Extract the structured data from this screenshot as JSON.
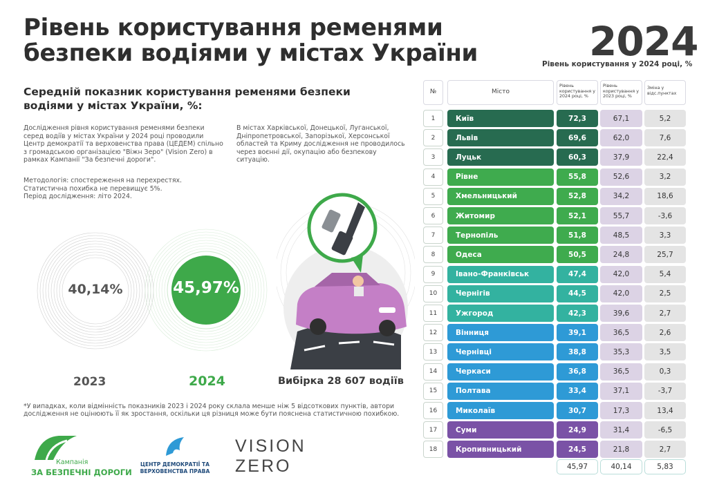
{
  "header": {
    "title_line1": "Рівень користування ременями",
    "title_line2": "безпеки водіями у містах України",
    "year": "2024",
    "year_caption": "Рівень користування у 2024 році, %"
  },
  "intro": {
    "subtitle": "Середній показник користування ременями безпеки водіями у містах України, %:",
    "para_left": "Дослідження рівня користування ременями безпеки серед водіїв  у містах України у 2024 році проводили Центр демократії та верховенства права (ЦЕДЕМ) спільно з громадською організацією \"Віжн Зеро\" (Vision Zero) в рамках Кампанії \"За безпечні дороги\".",
    "para_right": "В містах Харківської, Донецької, Луганської, Дніпропетровської, Запорізької, Херсонської областей та Криму дослідження не проводилось через воєнні дії, окупацію або безпекову ситуацію.",
    "methodology": "Методологія: спостереження на перехрестях.",
    "error": "Статистична похибка не перевищує 5%.",
    "period": "Період дослідження: літо 2024."
  },
  "averages": {
    "value_2023": "40,14%",
    "value_2024": "45,97%",
    "label_2023": "2023",
    "label_2024": "2024",
    "sample": "Вибірка 28 607 водіїв"
  },
  "footnote": "*У випадках, коли відмінність показників 2023 і 2024 року склала менше ніж 5 відсоткових пунктів, автори дослідження не оцінюють її як зростання, оскільки ця різниця може бути пояснена статистичною похибкою.",
  "logos": {
    "campaign_small": "Кампанія",
    "campaign_big": "ЗА БЕЗПЕЧНІ ДОРОГИ",
    "cedem_line1": "ЦЕНТР ДЕМОКРАТІЇ ТА",
    "cedem_line2": "ВЕРХОВЕНСТВА ПРАВА",
    "vz_line1": "VISION",
    "vz_line2": "ZERO"
  },
  "table": {
    "headers": {
      "num": "№",
      "city": "Місто",
      "rate_2024": "Рівень користування у 2024 році, %",
      "rate_2023": "Рівень користування у 2023 році, %",
      "change": "Зміна у відс.пунктах"
    },
    "totals": {
      "rate_2024": "45,97",
      "rate_2023": "40,14",
      "change": "5,83"
    }
  },
  "chart_data": {
    "type": "table",
    "title": "Рівень користування ременями безпеки водіями у містах України",
    "columns": [
      "№",
      "Місто",
      "Рівень користування у 2024 році, %",
      "Рівень користування у 2023 році, %",
      "Зміна у відс.пунктах"
    ],
    "rows": [
      {
        "n": "1",
        "city": "Київ",
        "v2024": "72,3",
        "v2023": "67,1",
        "change": "5,2",
        "color": "#276b50"
      },
      {
        "n": "2",
        "city": "Львів",
        "v2024": "69,6",
        "v2023": "62,0",
        "change": "7,6",
        "color": "#276b50"
      },
      {
        "n": "3",
        "city": "Луцьк",
        "v2024": "60,3",
        "v2023": "37,9",
        "change": "22,4",
        "color": "#276b50"
      },
      {
        "n": "4",
        "city": "Рівне",
        "v2024": "55,8",
        "v2023": "52,6",
        "change": "3,2",
        "color": "#3fab4e"
      },
      {
        "n": "5",
        "city": "Хмельницький",
        "v2024": "52,8",
        "v2023": "34,2",
        "change": "18,6",
        "color": "#3fab4e"
      },
      {
        "n": "6",
        "city": "Житомир",
        "v2024": "52,1",
        "v2023": "55,7",
        "change": "-3,6",
        "color": "#3fab4e"
      },
      {
        "n": "7",
        "city": "Тернопіль",
        "v2024": "51,8",
        "v2023": "48,5",
        "change": "3,3",
        "color": "#3fab4e"
      },
      {
        "n": "8",
        "city": "Одеса",
        "v2024": "50,5",
        "v2023": "24,8",
        "change": "25,7",
        "color": "#3fab4e"
      },
      {
        "n": "9",
        "city": "Івано-Франківськ",
        "v2024": "47,4",
        "v2023": "42,0",
        "change": "5,4",
        "color": "#33b2a0"
      },
      {
        "n": "10",
        "city": "Чернігів",
        "v2024": "44,5",
        "v2023": "42,0",
        "change": "2,5",
        "color": "#33b2a0"
      },
      {
        "n": "11",
        "city": "Ужгород",
        "v2024": "42,3",
        "v2023": "39,6",
        "change": "2,7",
        "color": "#33b2a0"
      },
      {
        "n": "12",
        "city": "Вінниця",
        "v2024": "39,1",
        "v2023": "36,5",
        "change": "2,6",
        "color": "#2e9ad6"
      },
      {
        "n": "13",
        "city": "Чернівці",
        "v2024": "38,8",
        "v2023": "35,3",
        "change": "3,5",
        "color": "#2e9ad6"
      },
      {
        "n": "14",
        "city": "Черкаси",
        "v2024": "36,8",
        "v2023": "36,5",
        "change": "0,3",
        "color": "#2e9ad6"
      },
      {
        "n": "15",
        "city": "Полтава",
        "v2024": "33,4",
        "v2023": "37,1",
        "change": "-3,7",
        "color": "#2e9ad6"
      },
      {
        "n": "16",
        "city": "Миколаїв",
        "v2024": "30,7",
        "v2023": "17,3",
        "change": "13,4",
        "color": "#2e9ad6"
      },
      {
        "n": "17",
        "city": "Суми",
        "v2024": "24,9",
        "v2023": "31,4",
        "change": "-6,5",
        "color": "#7a52a6"
      },
      {
        "n": "18",
        "city": "Кропивницький",
        "v2024": "24,5",
        "v2023": "21,8",
        "change": "2,7",
        "color": "#7a52a6"
      }
    ]
  }
}
